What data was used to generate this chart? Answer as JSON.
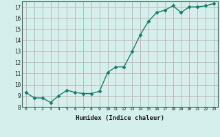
{
  "x": [
    0,
    1,
    2,
    3,
    4,
    5,
    6,
    7,
    8,
    9,
    10,
    11,
    12,
    13,
    14,
    15,
    16,
    17,
    18,
    19,
    20,
    21,
    22,
    23
  ],
  "y": [
    9.3,
    8.8,
    8.8,
    8.4,
    9.0,
    9.5,
    9.3,
    9.2,
    9.2,
    9.4,
    11.1,
    11.6,
    11.6,
    13.0,
    14.5,
    15.7,
    16.5,
    16.7,
    17.1,
    16.5,
    17.0,
    17.0,
    17.1,
    17.3
  ],
  "xlabel": "Humidex (Indice chaleur)",
  "line_color": "#1a7a6e",
  "marker_size": 2.5,
  "bg_color": "#d4efec",
  "grid_color": "#c0aeae",
  "xlim": [
    -0.5,
    23.5
  ],
  "ylim": [
    8.0,
    17.5
  ],
  "yticks": [
    8,
    9,
    10,
    11,
    12,
    13,
    14,
    15,
    16,
    17
  ],
  "xticks": [
    0,
    1,
    2,
    3,
    4,
    5,
    6,
    7,
    8,
    9,
    10,
    11,
    12,
    13,
    14,
    15,
    16,
    17,
    18,
    19,
    20,
    21,
    22,
    23
  ]
}
